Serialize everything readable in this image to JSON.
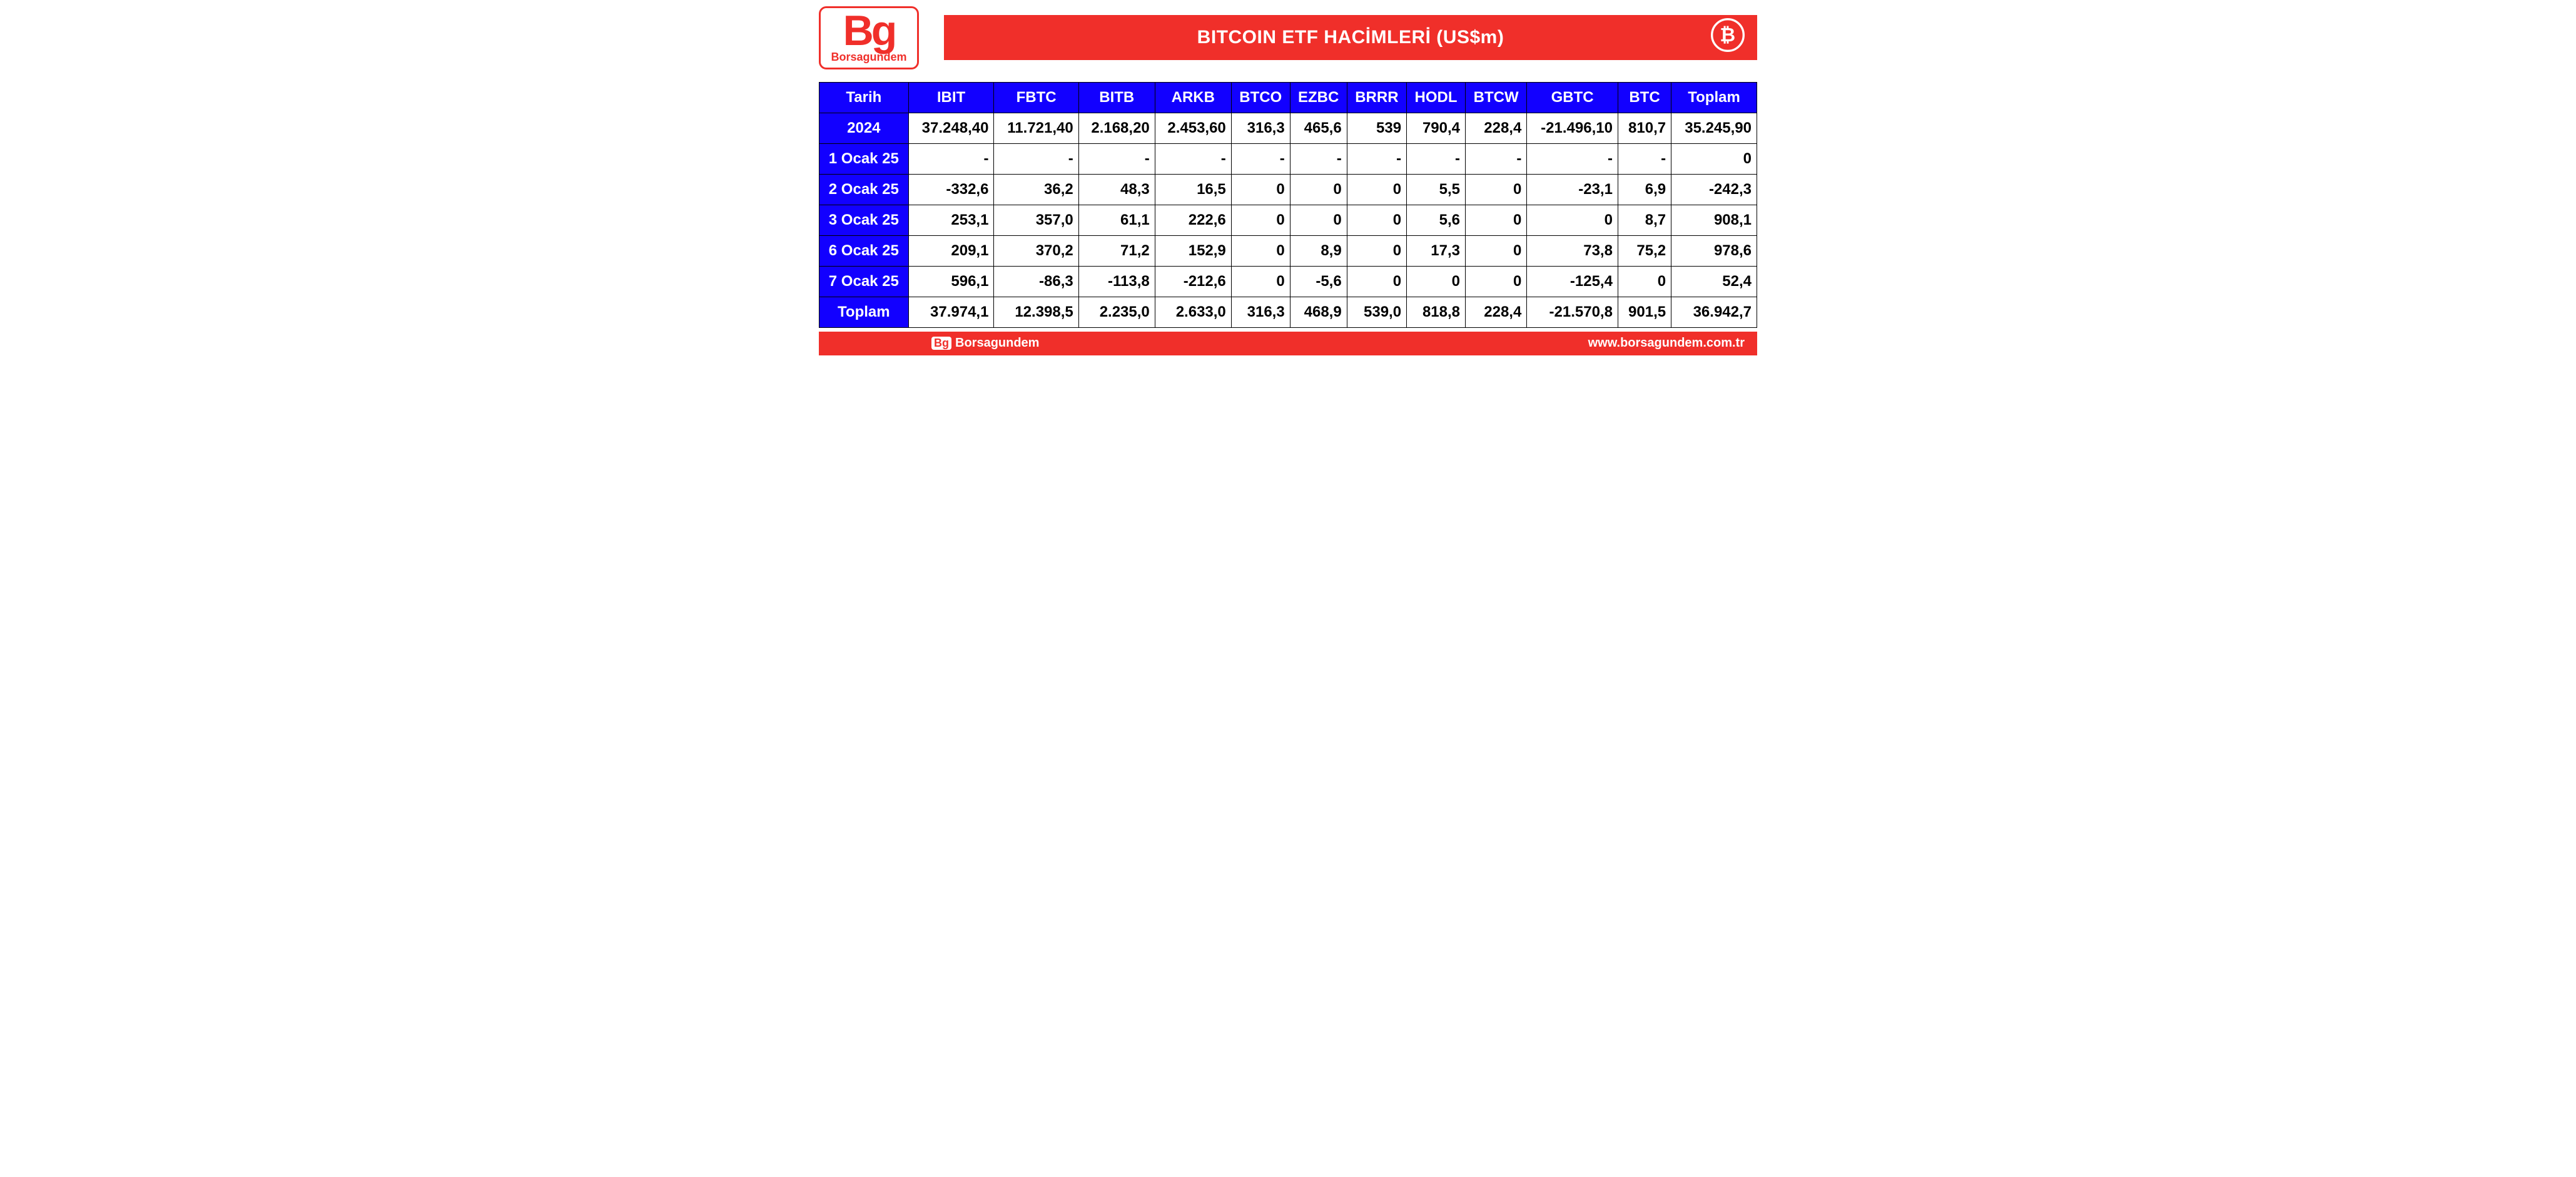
{
  "header": {
    "logo_main": "Bg",
    "logo_sub": "Borsagundem",
    "title": "BITCOIN ETF HACİMLERİ (US$m)"
  },
  "table": {
    "columns": [
      "Tarih",
      "IBIT",
      "FBTC",
      "BITB",
      "ARKB",
      "BTCO",
      "EZBC",
      "BRRR",
      "HODL",
      "BTCW",
      "GBTC",
      "BTC",
      "Toplam"
    ],
    "rows": [
      {
        "label": "2024",
        "cells": [
          "37.248,40",
          "11.721,40",
          "2.168,20",
          "2.453,60",
          "316,3",
          "465,6",
          "539",
          "790,4",
          "228,4",
          "-21.496,10",
          "810,7",
          "35.245,90"
        ]
      },
      {
        "label": "1 Ocak 25",
        "cells": [
          "-",
          "-",
          "-",
          "-",
          "-",
          "-",
          "-",
          "-",
          "-",
          "-",
          "-",
          "0"
        ]
      },
      {
        "label": "2 Ocak 25",
        "cells": [
          "-332,6",
          "36,2",
          "48,3",
          "16,5",
          "0",
          "0",
          "0",
          "5,5",
          "0",
          "-23,1",
          "6,9",
          "-242,3"
        ]
      },
      {
        "label": "3 Ocak 25",
        "cells": [
          "253,1",
          "357,0",
          "61,1",
          "222,6",
          "0",
          "0",
          "0",
          "5,6",
          "0",
          "0",
          "8,7",
          "908,1"
        ]
      },
      {
        "label": "6 Ocak 25",
        "cells": [
          "209,1",
          "370,2",
          "71,2",
          "152,9",
          "0",
          "8,9",
          "0",
          "17,3",
          "0",
          "73,8",
          "75,2",
          "978,6"
        ]
      },
      {
        "label": "7 Ocak 25",
        "cells": [
          "596,1",
          "-86,3",
          "-113,8",
          "-212,6",
          "0",
          "-5,6",
          "0",
          "0",
          "0",
          "-125,4",
          "0",
          "52,4"
        ]
      },
      {
        "label": "Toplam",
        "cells": [
          "37.974,1",
          "12.398,5",
          "2.235,0",
          "2.633,0",
          "316,3",
          "468,9",
          "539,0",
          "818,8",
          "228,4",
          "-21.570,8",
          "901,5",
          "36.942,7"
        ]
      }
    ]
  },
  "footer": {
    "brand_box": "Bg",
    "brand_text": "Borsagundem",
    "url": "www.borsagundem.com.tr"
  },
  "colors": {
    "red": "#f02f2a",
    "blue": "#1200ff",
    "white": "#ffffff",
    "black": "#000000"
  }
}
